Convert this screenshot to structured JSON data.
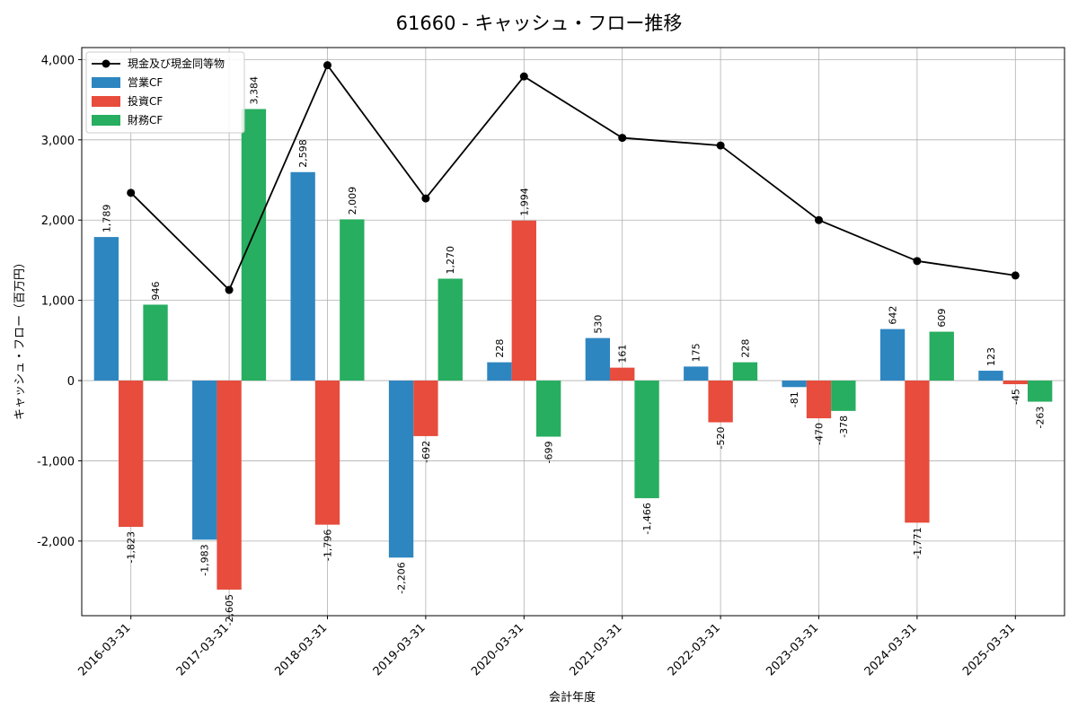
{
  "chart_data": {
    "type": "bar",
    "title": "61660 - キャッシュ・フロー推移",
    "xlabel": "会計年度",
    "ylabel": "キャッシュ・フロー（百万円）",
    "categories": [
      "2016-03-31",
      "2017-03-31",
      "2018-03-31",
      "2019-03-31",
      "2020-03-31",
      "2021-03-31",
      "2022-03-31",
      "2023-03-31",
      "2024-03-31",
      "2025-03-31"
    ],
    "series": [
      {
        "name": "営業CF",
        "kind": "bar",
        "color": "#2e86c1",
        "values": [
          1789,
          -1983,
          2598,
          -2206,
          228,
          530,
          175,
          -81,
          642,
          123
        ],
        "labels": [
          "1,789",
          "-1,983",
          "2,598",
          "-2,206",
          "228",
          "530",
          "175",
          "-81",
          "642",
          "123"
        ]
      },
      {
        "name": "投資CF",
        "kind": "bar",
        "color": "#e74c3c",
        "values": [
          -1823,
          -2605,
          -1796,
          -692,
          1994,
          161,
          -520,
          -470,
          -1771,
          -45
        ],
        "labels": [
          "-1,823",
          "-2,605",
          "-1,796",
          "-692",
          "1,994",
          "161",
          "-520",
          "-470",
          "-1,771",
          "-45"
        ]
      },
      {
        "name": "財務CF",
        "kind": "bar",
        "color": "#27ae60",
        "values": [
          946,
          3384,
          2009,
          1270,
          -699,
          -1466,
          228,
          -378,
          609,
          -263
        ],
        "labels": [
          "946",
          "3,384",
          "2,009",
          "1,270",
          "-699",
          "-1,466",
          "228",
          "-378",
          "609",
          "-263"
        ]
      },
      {
        "name": "現金及び現金同等物",
        "kind": "line",
        "color": "#000000",
        "values": [
          2340,
          1130,
          3930,
          2270,
          3790,
          3025,
          2930,
          2000,
          1490,
          1310
        ]
      }
    ],
    "ylim": [
      -2930,
      4150
    ],
    "yticks": [
      -2000,
      -1000,
      0,
      1000,
      2000,
      3000,
      4000
    ],
    "ytick_labels": [
      "-2,000",
      "-1,000",
      "0",
      "1,000",
      "2,000",
      "3,000",
      "4,000"
    ],
    "grid": true,
    "legend_position": "top-left"
  }
}
